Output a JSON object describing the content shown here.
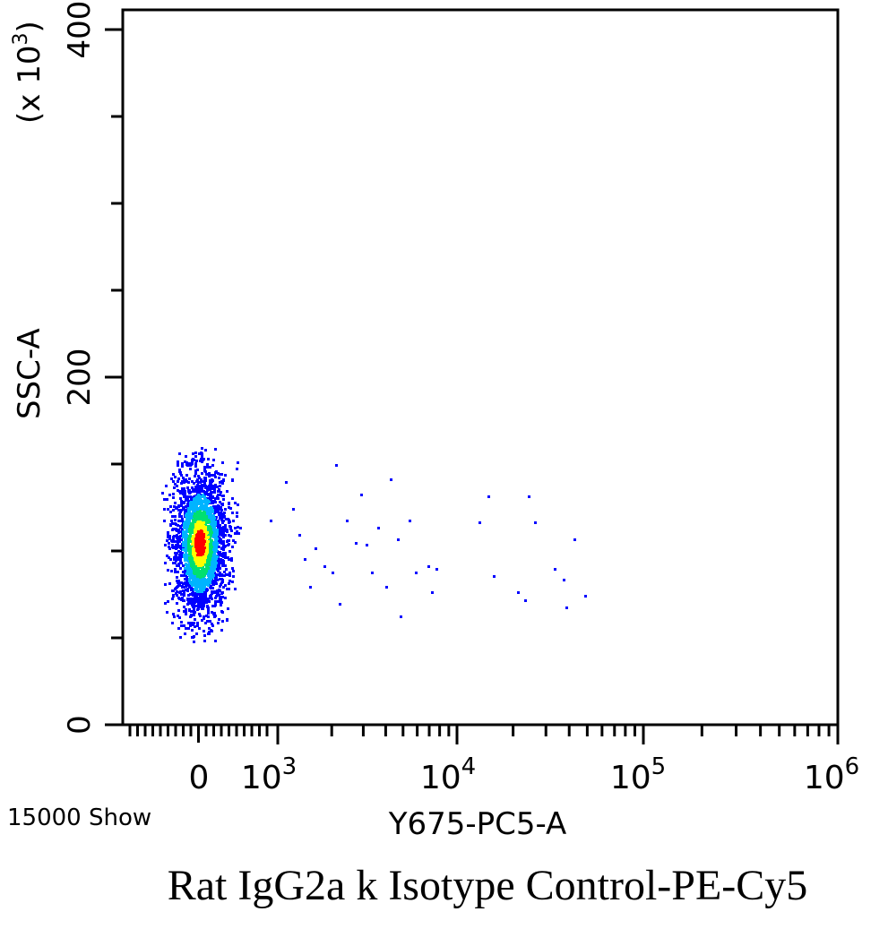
{
  "chart_data": {
    "type": "scatter",
    "title": "",
    "xlabel": "Y675-PC5-A",
    "ylabel": "SSC-A",
    "y_multiplier": "(x 10",
    "y_multiplier_exp": "3",
    "y_multiplier_close": ")",
    "y_ticks": [
      {
        "value": 0,
        "label": "0"
      },
      {
        "value": 200,
        "label": "200"
      },
      {
        "value": 400,
        "label": "400"
      }
    ],
    "x_ticks": [
      {
        "label": "0",
        "base": "",
        "exp": ""
      },
      {
        "label": "",
        "base": "10",
        "exp": "3"
      },
      {
        "label": "",
        "base": "10",
        "exp": "4"
      },
      {
        "label": "",
        "base": "10",
        "exp": "5"
      },
      {
        "label": "",
        "base": "10",
        "exp": "6"
      }
    ],
    "ylim": [
      0,
      400
    ],
    "x_scale": "biexponential",
    "event_label": "15000 Show",
    "caption": "Rat IgG2a k Isotype Control-PE-Cy5",
    "colors": {
      "low": "#0000ff",
      "mid_low": "#00b4ff",
      "mid": "#00e070",
      "mid_high": "#ffff00",
      "high": "#ff0000"
    },
    "population": {
      "x_center": 0,
      "y_center": 105,
      "y_range": [
        48,
        160
      ]
    },
    "outliers": [
      {
        "x": 900,
        "y": 118
      },
      {
        "x": 1100,
        "y": 140
      },
      {
        "x": 1200,
        "y": 125
      },
      {
        "x": 1300,
        "y": 110
      },
      {
        "x": 1400,
        "y": 96
      },
      {
        "x": 1500,
        "y": 80
      },
      {
        "x": 1600,
        "y": 102
      },
      {
        "x": 1800,
        "y": 92
      },
      {
        "x": 2000,
        "y": 88
      },
      {
        "x": 2100,
        "y": 150
      },
      {
        "x": 2200,
        "y": 70
      },
      {
        "x": 2400,
        "y": 118
      },
      {
        "x": 2700,
        "y": 105
      },
      {
        "x": 2900,
        "y": 133
      },
      {
        "x": 3100,
        "y": 104
      },
      {
        "x": 3300,
        "y": 88
      },
      {
        "x": 3600,
        "y": 114
      },
      {
        "x": 4000,
        "y": 80
      },
      {
        "x": 4200,
        "y": 142
      },
      {
        "x": 4600,
        "y": 107
      },
      {
        "x": 4800,
        "y": 63
      },
      {
        "x": 5400,
        "y": 118
      },
      {
        "x": 5800,
        "y": 88
      },
      {
        "x": 6800,
        "y": 92
      },
      {
        "x": 7200,
        "y": 77
      },
      {
        "x": 7600,
        "y": 90
      },
      {
        "x": 13000,
        "y": 117
      },
      {
        "x": 14500,
        "y": 132
      },
      {
        "x": 15500,
        "y": 86
      },
      {
        "x": 21000,
        "y": 77
      },
      {
        "x": 23000,
        "y": 72
      },
      {
        "x": 24000,
        "y": 132
      },
      {
        "x": 26000,
        "y": 117
      },
      {
        "x": 33000,
        "y": 90
      },
      {
        "x": 37000,
        "y": 84
      },
      {
        "x": 38000,
        "y": 68
      },
      {
        "x": 42000,
        "y": 107
      },
      {
        "x": 48000,
        "y": 75
      }
    ]
  }
}
